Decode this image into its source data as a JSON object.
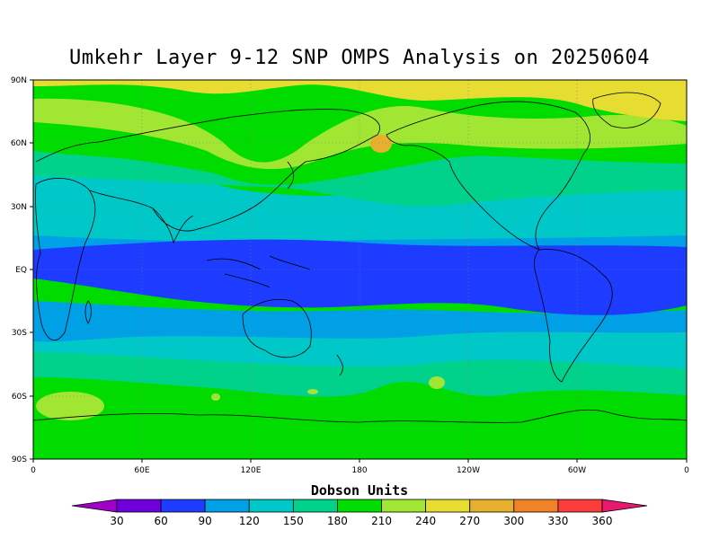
{
  "title": "Umkehr Layer 9-12 SNP OMPS Analysis on 20250604",
  "lat_ticks": [
    "90N",
    "60N",
    "30N",
    "EQ",
    "30S",
    "60S",
    "90S"
  ],
  "lon_ticks": [
    "0",
    "60E",
    "120E",
    "180",
    "120W",
    "60W",
    "0"
  ],
  "colorbar": {
    "title": "Dobson Units",
    "levels": [
      "30",
      "60",
      "90",
      "120",
      "150",
      "180",
      "210",
      "240",
      "270",
      "300",
      "330",
      "360"
    ],
    "colors": [
      "#a000c8",
      "#6e00dc",
      "#1e3cff",
      "#00a0e6",
      "#00c8c8",
      "#00d28c",
      "#00dc00",
      "#a0e632",
      "#e6dc32",
      "#e6af2d",
      "#f08228",
      "#fa3c3c",
      "#e6196e"
    ]
  },
  "chart_data": {
    "type": "heatmap",
    "title": "Umkehr Layer 9-12 SNP OMPS Analysis on 20250604",
    "xlabel": "",
    "ylabel": "",
    "x_range": [
      "0",
      "0"
    ],
    "y_range": [
      "90S",
      "90N"
    ],
    "units": "Dobson Units",
    "bands_north_to_south": [
      {
        "lat_range": "90N-60N",
        "value_range": "240-270"
      },
      {
        "lat_range": "60N-45N",
        "value_range": "210-240"
      },
      {
        "lat_range": "45N-35N",
        "value_range": "180-210"
      },
      {
        "lat_range": "35N-20N",
        "value_range": "150-180"
      },
      {
        "lat_range": "20N-10N",
        "value_range": "120-150"
      },
      {
        "lat_range": "10N-15S",
        "value_range": "90-120"
      },
      {
        "lat_range": "15S-30S",
        "value_range": "120-150"
      },
      {
        "lat_range": "30S-45S",
        "value_range": "150-180"
      },
      {
        "lat_range": "45S-55S",
        "value_range": "180-210"
      },
      {
        "lat_range": "55S-90S",
        "value_range": "210-240"
      }
    ],
    "local_max": {
      "location": "Bering Sea (~60N, 175W)",
      "value_range": "270-300"
    }
  }
}
